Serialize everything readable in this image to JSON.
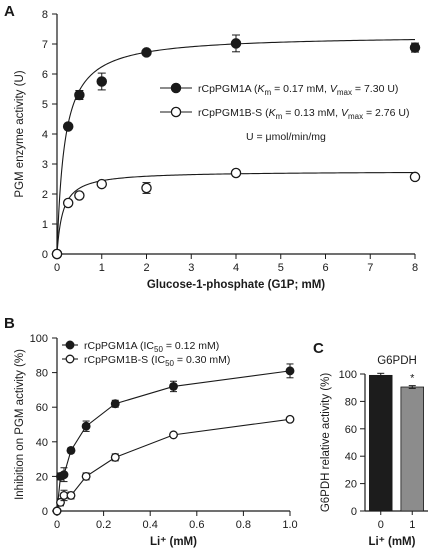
{
  "panels": {
    "a": {
      "letter": "A"
    },
    "b": {
      "letter": "B"
    },
    "c": {
      "letter": "C"
    }
  },
  "chart_data": [
    {
      "id": "A",
      "type": "scatter",
      "title": "",
      "xlabel": "Glucose-1-phosphate (G1P; mM)",
      "ylabel": "PGM enzyme activity (U)",
      "xlim": [
        0,
        8
      ],
      "ylim": [
        0,
        8
      ],
      "xticks": [
        0,
        1,
        2,
        3,
        4,
        5,
        6,
        7,
        8
      ],
      "yticks": [
        0,
        1,
        2,
        3,
        4,
        5,
        6,
        7,
        8
      ],
      "grid": false,
      "legend_position": "center-right",
      "annotation": "U = μmol/min/mg",
      "series": [
        {
          "name": "rCpPGM1A (Km = 0.17 mM, Vmax = 7.30 U)",
          "label_parts": [
            "rCpPGM1A (",
            "K",
            "m",
            " = 0.17 mM, ",
            "V",
            "max",
            " = 7.30 U)"
          ],
          "marker": "filled-circle",
          "fit": "michaelis-menten",
          "km": 0.17,
          "vmax": 7.3,
          "x": [
            0,
            0.25,
            0.5,
            1,
            2,
            4,
            8
          ],
          "y": [
            0,
            4.25,
            5.3,
            5.75,
            6.72,
            7.02,
            6.88
          ],
          "err": [
            0,
            0.05,
            0.15,
            0.28,
            0.1,
            0.28,
            0.15
          ]
        },
        {
          "name": "rCpPGM1B-S (Km = 0.13 mM, Vmax = 2.76 U)",
          "label_parts": [
            "rCpPGM1B-S (",
            "K",
            "m",
            " = 0.13 mM, ",
            "V",
            "max",
            " = 2.76 U)"
          ],
          "marker": "open-circle",
          "fit": "michaelis-menten",
          "km": 0.13,
          "vmax": 2.76,
          "x": [
            0,
            0.25,
            0.5,
            1,
            2,
            4,
            8
          ],
          "y": [
            0,
            1.7,
            1.95,
            2.33,
            2.2,
            2.7,
            2.57
          ],
          "err": [
            0,
            0.05,
            0.05,
            0.08,
            0.18,
            0.05,
            0.05
          ]
        }
      ]
    },
    {
      "id": "B",
      "type": "scatter",
      "title": "",
      "xlabel": "Li⁺ (mM)",
      "ylabel": "Inhibition on PGM activity (%)",
      "xlim": [
        0,
        1.0
      ],
      "ylim": [
        0,
        100
      ],
      "xticks": [
        0,
        0.2,
        0.4,
        0.6,
        0.8,
        1.0
      ],
      "xtick_labels": [
        "0",
        "0.2",
        "0.4",
        "0.6",
        "0.8",
        "1.0"
      ],
      "yticks": [
        0,
        20,
        40,
        60,
        80,
        100
      ],
      "grid": false,
      "legend_position": "top-left",
      "series": [
        {
          "name": "rCpPGM1A (IC50 = 0.12 mM)",
          "label_parts": [
            "rCpPGM1A (IC",
            "50",
            " = 0.12 mM)"
          ],
          "marker": "filled-circle",
          "x": [
            0,
            0.015,
            0.03,
            0.06,
            0.125,
            0.25,
            0.5,
            1.0
          ],
          "y": [
            0,
            20,
            21,
            35,
            49,
            62,
            72,
            81
          ],
          "err": [
            0,
            2,
            4,
            1.5,
            3,
            2,
            3,
            4
          ]
        },
        {
          "name": "rCpPGM1B-S (IC50 = 0.30 mM)",
          "label_parts": [
            "rCpPGM1B-S (IC",
            "50",
            " = 0.30 mM)"
          ],
          "marker": "open-circle",
          "x": [
            0,
            0.015,
            0.03,
            0.06,
            0.125,
            0.25,
            0.5,
            1.0
          ],
          "y": [
            0,
            5,
            9,
            9,
            20,
            31,
            44,
            53
          ],
          "err": [
            0,
            2,
            3,
            2,
            2,
            2,
            1,
            1
          ]
        }
      ]
    },
    {
      "id": "C",
      "type": "bar",
      "title": "G6PDH",
      "xlabel": "Li⁺ (mM)",
      "ylabel": "G6PDH relative activity (%)",
      "ylim": [
        0,
        100
      ],
      "yticks": [
        0,
        20,
        40,
        60,
        80,
        100
      ],
      "categories": [
        "0",
        "1"
      ],
      "values": [
        99,
        90.5
      ],
      "err": [
        1.5,
        1
      ],
      "bar_colors": [
        "#1c1c1c",
        "#8c8c8c"
      ],
      "annotations": [
        {
          "category": "1",
          "text": "*"
        }
      ]
    }
  ]
}
